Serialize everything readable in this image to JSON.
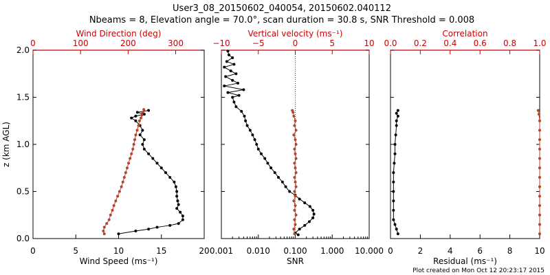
{
  "title_line1": "User3_08_20150602_040054, 20150602.040112",
  "title_line2": "Nbeams = 8, Elevation angle = 70.0°, scan duration = 30.8 s, SNR Threshold = 0.008",
  "footer": "Plot created on Mon Oct 12 20:23:17 2015",
  "colors": {
    "black": "#000000",
    "red": "#cc0000",
    "rust": "#b5452a"
  },
  "chart_data": [
    {
      "type": "line",
      "panel": "left",
      "ylabel": "z (km AGL)",
      "ylim": [
        0,
        2.0
      ],
      "yticks": [
        "0.0",
        "0.5",
        "1.0",
        "1.5",
        "2.0"
      ],
      "bottom_axis": {
        "label": "Wind Speed (ms⁻¹)",
        "lim": [
          0,
          20
        ],
        "ticks": [
          "0",
          "5",
          "10",
          "15",
          "20"
        ]
      },
      "top_axis": {
        "label": "Wind Direction (deg)",
        "lim": [
          0,
          360
        ],
        "ticks": [
          "0",
          "100",
          "200",
          "300"
        ]
      },
      "series": [
        {
          "axis": "bottom",
          "color": "black",
          "points": [
            [
              10.0,
              0.05
            ],
            [
              12.0,
              0.08
            ],
            [
              13.5,
              0.1
            ],
            [
              14.5,
              0.12
            ],
            [
              16.0,
              0.14
            ],
            [
              17.0,
              0.16
            ],
            [
              17.5,
              0.2
            ],
            [
              17.5,
              0.24
            ],
            [
              17.2,
              0.28
            ],
            [
              16.8,
              0.32
            ],
            [
              17.0,
              0.36
            ],
            [
              16.9,
              0.4
            ],
            [
              16.8,
              0.45
            ],
            [
              16.8,
              0.5
            ],
            [
              16.7,
              0.55
            ],
            [
              16.5,
              0.6
            ],
            [
              16.0,
              0.65
            ],
            [
              15.5,
              0.7
            ],
            [
              15.0,
              0.75
            ],
            [
              14.5,
              0.8
            ],
            [
              14.0,
              0.85
            ],
            [
              13.5,
              0.9
            ],
            [
              13.0,
              0.95
            ],
            [
              12.8,
              1.0
            ],
            [
              13.0,
              1.05
            ],
            [
              12.5,
              1.1
            ],
            [
              12.8,
              1.15
            ],
            [
              12.5,
              1.2
            ],
            [
              12.0,
              1.25
            ],
            [
              11.5,
              1.28
            ],
            [
              12.0,
              1.3
            ],
            [
              13.0,
              1.32
            ],
            [
              12.2,
              1.34
            ],
            [
              13.5,
              1.36
            ]
          ]
        },
        {
          "axis": "top",
          "color": "rust",
          "points": [
            [
              150,
              0.05
            ],
            [
              148,
              0.08
            ],
            [
              150,
              0.12
            ],
            [
              155,
              0.16
            ],
            [
              160,
              0.2
            ],
            [
              163,
              0.25
            ],
            [
              167,
              0.3
            ],
            [
              170,
              0.35
            ],
            [
              174,
              0.4
            ],
            [
              178,
              0.45
            ],
            [
              182,
              0.5
            ],
            [
              186,
              0.55
            ],
            [
              189,
              0.6
            ],
            [
              192,
              0.65
            ],
            [
              195,
              0.7
            ],
            [
              198,
              0.75
            ],
            [
              201,
              0.8
            ],
            [
              204,
              0.85
            ],
            [
              207,
              0.9
            ],
            [
              210,
              0.95
            ],
            [
              212,
              1.0
            ],
            [
              214,
              1.05
            ],
            [
              216,
              1.1
            ],
            [
              219,
              1.15
            ],
            [
              222,
              1.2
            ],
            [
              224,
              1.25
            ],
            [
              227,
              1.28
            ],
            [
              229,
              1.31
            ],
            [
              231,
              1.34
            ],
            [
              233,
              1.37
            ]
          ]
        }
      ]
    },
    {
      "type": "line",
      "panel": "middle",
      "ylim": [
        0,
        2.0
      ],
      "bottom_axis": {
        "label": "SNR",
        "scale": "log",
        "lim": [
          0.001,
          10
        ],
        "ticks": [
          "0.001",
          "0.010",
          "0.100",
          "1.000",
          "10.000"
        ]
      },
      "top_axis": {
        "label": "Vertical velocity (ms⁻¹)",
        "lim": [
          -10,
          10
        ],
        "ticks": [
          "−10",
          "−5",
          "0",
          "5",
          "10"
        ]
      },
      "series": [
        {
          "axis": "bottom",
          "color": "black",
          "points": [
            [
              0.12,
              0.04
            ],
            [
              0.1,
              0.06
            ],
            [
              0.13,
              0.1
            ],
            [
              0.18,
              0.14
            ],
            [
              0.24,
              0.18
            ],
            [
              0.3,
              0.22
            ],
            [
              0.32,
              0.26
            ],
            [
              0.3,
              0.3
            ],
            [
              0.25,
              0.34
            ],
            [
              0.18,
              0.38
            ],
            [
              0.13,
              0.42
            ],
            [
              0.1,
              0.46
            ],
            [
              0.07,
              0.5
            ],
            [
              0.055,
              0.55
            ],
            [
              0.045,
              0.6
            ],
            [
              0.035,
              0.65
            ],
            [
              0.028,
              0.7
            ],
            [
              0.022,
              0.75
            ],
            [
              0.018,
              0.8
            ],
            [
              0.015,
              0.85
            ],
            [
              0.012,
              0.9
            ],
            [
              0.01,
              0.95
            ],
            [
              0.009,
              1.0
            ],
            [
              0.008,
              1.05
            ],
            [
              0.007,
              1.1
            ],
            [
              0.006,
              1.15
            ],
            [
              0.005,
              1.2
            ],
            [
              0.0045,
              1.25
            ],
            [
              0.0042,
              1.3
            ],
            [
              0.0035,
              1.35
            ],
            [
              0.0025,
              1.4
            ],
            [
              0.0022,
              1.45
            ],
            [
              0.002,
              1.5
            ],
            [
              0.003,
              1.52
            ],
            [
              0.0015,
              1.55
            ],
            [
              0.004,
              1.58
            ],
            [
              0.0012,
              1.62
            ],
            [
              0.0028,
              1.65
            ],
            [
              0.002,
              1.68
            ],
            [
              0.0013,
              1.72
            ],
            [
              0.0025,
              1.75
            ],
            [
              0.0018,
              1.78
            ],
            [
              0.0012,
              1.82
            ],
            [
              0.0022,
              1.85
            ],
            [
              0.0014,
              1.88
            ],
            [
              0.002,
              1.92
            ],
            [
              0.0016,
              1.95
            ],
            [
              0.0015,
              1.99
            ]
          ]
        },
        {
          "axis": "top",
          "color": "rust",
          "points": [
            [
              -0.1,
              0.05
            ],
            [
              -0.2,
              0.1
            ],
            [
              0.0,
              0.15
            ],
            [
              -0.1,
              0.2
            ],
            [
              0.1,
              0.25
            ],
            [
              -0.1,
              0.3
            ],
            [
              0.0,
              0.35
            ],
            [
              -0.2,
              0.4
            ],
            [
              0.0,
              0.45
            ],
            [
              -0.1,
              0.5
            ],
            [
              0.1,
              0.55
            ],
            [
              0.0,
              0.6
            ],
            [
              -0.1,
              0.65
            ],
            [
              0.1,
              0.7
            ],
            [
              0.0,
              0.75
            ],
            [
              -0.1,
              0.8
            ],
            [
              0.1,
              0.85
            ],
            [
              0.0,
              0.9
            ],
            [
              -0.1,
              0.95
            ],
            [
              0.1,
              1.0
            ],
            [
              0.0,
              1.05
            ],
            [
              -0.2,
              1.1
            ],
            [
              0.1,
              1.15
            ],
            [
              -0.1,
              1.2
            ],
            [
              0.0,
              1.25
            ],
            [
              -0.2,
              1.3
            ],
            [
              -0.3,
              1.34
            ],
            [
              -0.4,
              1.36
            ]
          ]
        }
      ]
    },
    {
      "type": "line",
      "panel": "right",
      "ylim": [
        0,
        2.0
      ],
      "bottom_axis": {
        "label": "Residual (ms⁻¹)",
        "lim": [
          0,
          10
        ],
        "ticks": [
          "0",
          "2",
          "4",
          "6",
          "8",
          "10"
        ]
      },
      "top_axis": {
        "label": "Correlation",
        "lim": [
          0,
          1.0
        ],
        "ticks": [
          "0.0",
          "0.2",
          "0.4",
          "0.6",
          "0.8",
          "1.0"
        ]
      },
      "series": [
        {
          "axis": "bottom",
          "color": "black",
          "points": [
            [
              0.5,
              0.05
            ],
            [
              0.4,
              0.1
            ],
            [
              0.3,
              0.15
            ],
            [
              0.2,
              0.2
            ],
            [
              0.2,
              0.3
            ],
            [
              0.2,
              0.4
            ],
            [
              0.2,
              0.5
            ],
            [
              0.2,
              0.6
            ],
            [
              0.2,
              0.7
            ],
            [
              0.25,
              0.8
            ],
            [
              0.3,
              0.9
            ],
            [
              0.3,
              1.0
            ],
            [
              0.35,
              1.1
            ],
            [
              0.4,
              1.2
            ],
            [
              0.4,
              1.25
            ],
            [
              0.5,
              1.3
            ],
            [
              0.4,
              1.33
            ],
            [
              0.5,
              1.36
            ]
          ]
        },
        {
          "axis": "top",
          "color": "rust",
          "points": [
            [
              1.0,
              0.05
            ],
            [
              1.0,
              0.15
            ],
            [
              1.0,
              0.25
            ],
            [
              1.0,
              0.35
            ],
            [
              1.0,
              0.45
            ],
            [
              1.0,
              0.55
            ],
            [
              1.0,
              0.65
            ],
            [
              1.0,
              0.75
            ],
            [
              1.0,
              0.85
            ],
            [
              1.0,
              0.95
            ],
            [
              1.0,
              1.05
            ],
            [
              1.0,
              1.15
            ],
            [
              1.0,
              1.25
            ],
            [
              0.995,
              1.32
            ],
            [
              0.99,
              1.36
            ]
          ]
        }
      ]
    }
  ]
}
